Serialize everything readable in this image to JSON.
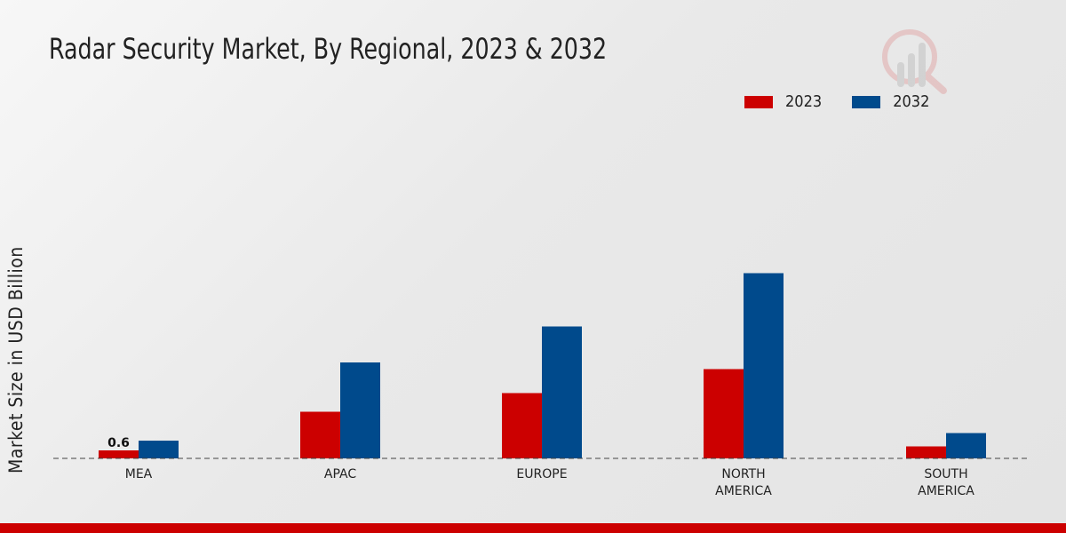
{
  "chart_data": {
    "type": "bar",
    "title": "Radar Security Market, By Regional, 2023 & 2032",
    "xlabel": "",
    "ylabel": "Market Size in USD Billion",
    "categories": [
      "MEA",
      "APAC",
      "EUROPE",
      "NORTH\nAMERICA",
      "SOUTH\nAMERICA"
    ],
    "series": [
      {
        "name": "2023",
        "color": "#cc0000",
        "values": [
          0.6,
          3.5,
          4.9,
          6.7,
          0.9
        ]
      },
      {
        "name": "2032",
        "color": "#004a8c",
        "values": [
          1.33,
          7.2,
          9.9,
          13.9,
          1.9
        ]
      }
    ],
    "data_labels": [
      {
        "series": "2023",
        "category": "MEA",
        "text": "0.6"
      }
    ],
    "ylim": [
      0,
      16
    ],
    "grid": false,
    "legend_position": "top-right"
  }
}
